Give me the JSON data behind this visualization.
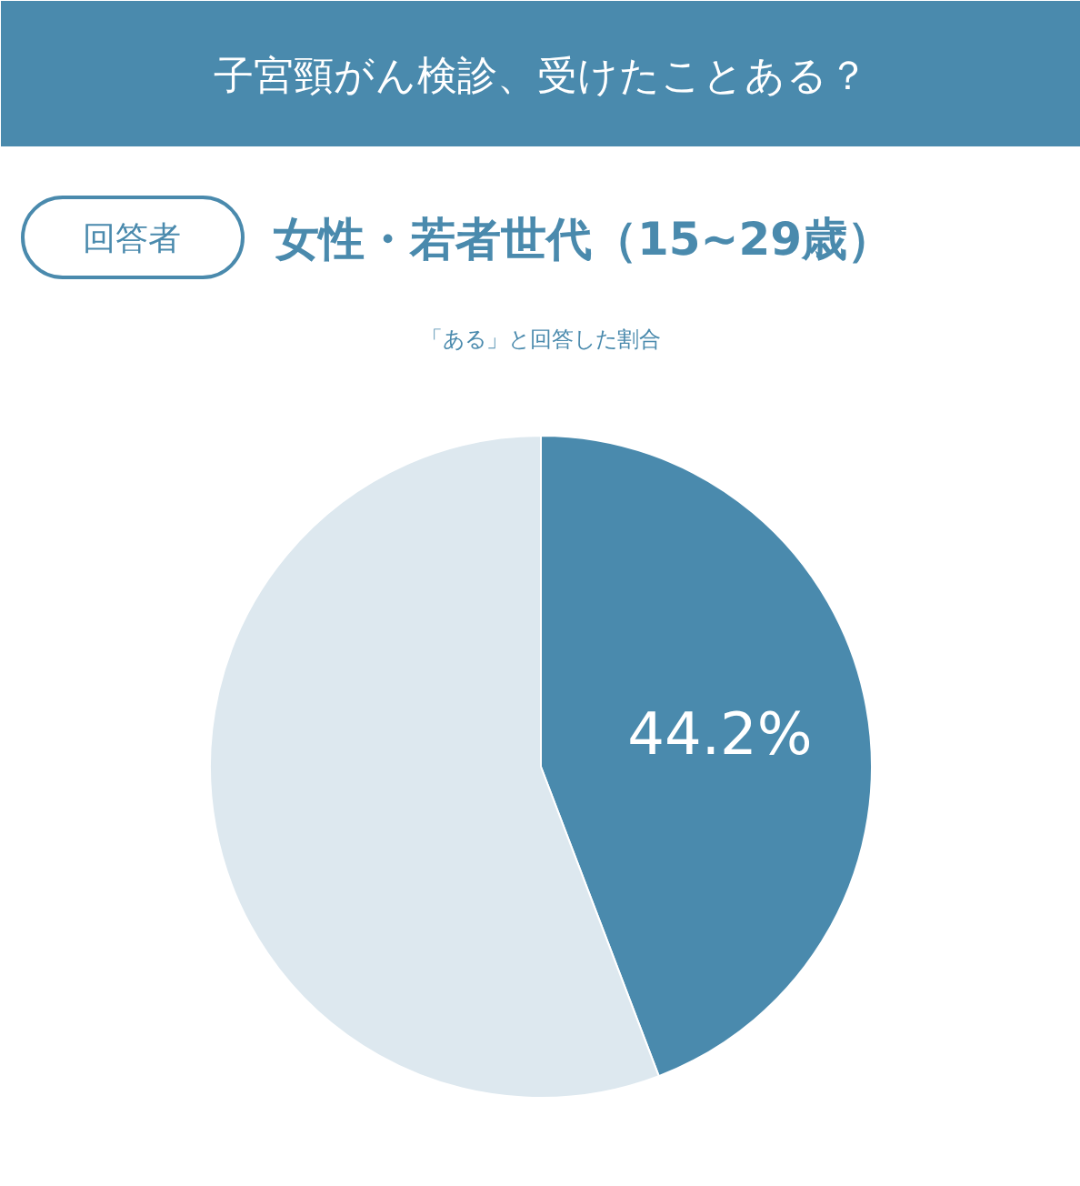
{
  "chart_data": {
    "type": "pie",
    "title": "子宮頸がん検診、受けたことある？",
    "subtitle": "女性・若者世代（15~29歳）",
    "annotations": [
      "回答者",
      "「ある」と回答した割合"
    ],
    "categories": [
      null,
      null
    ],
    "values": [
      44.2,
      55.8
    ],
    "colors": [
      "#4a8aad",
      "#dde8ef"
    ],
    "value_labels": [
      "44.2%",
      null
    ]
  }
}
